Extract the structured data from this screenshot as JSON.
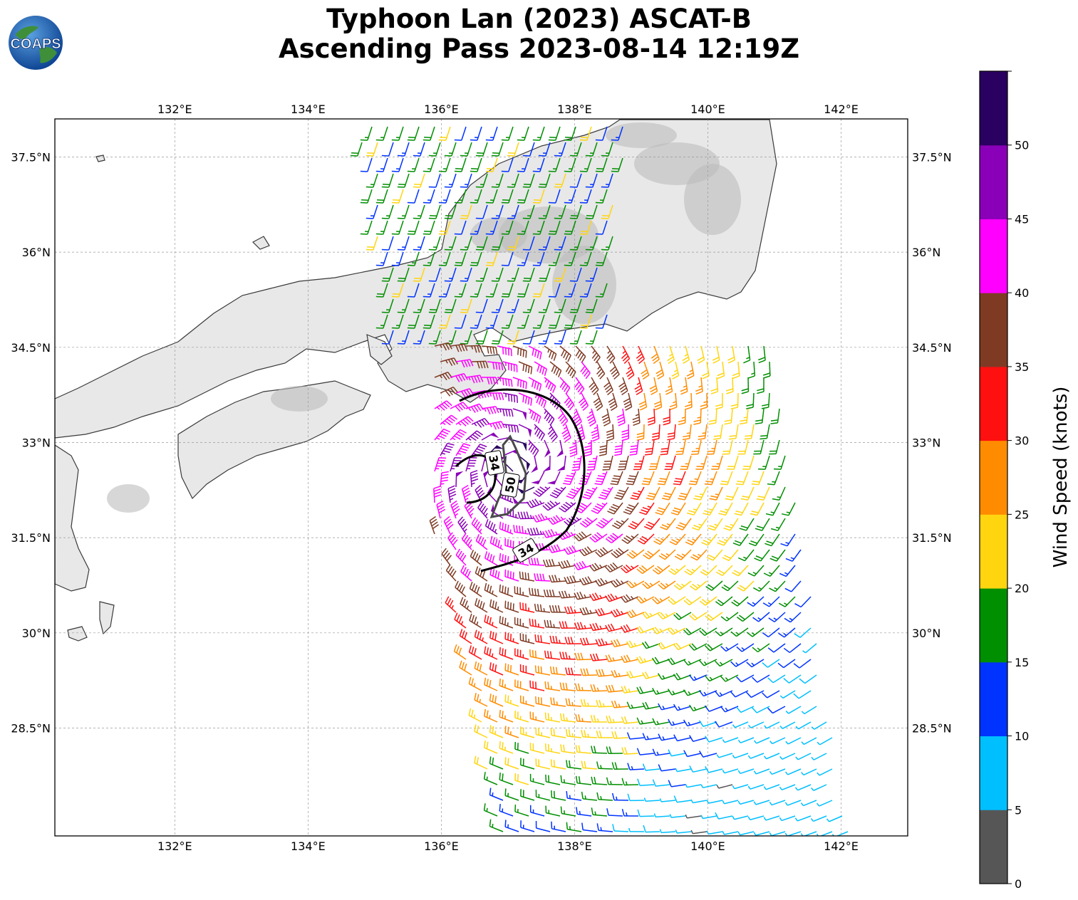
{
  "title": {
    "line1": "Typhoon Lan (2023) ASCAT-B",
    "line2": "Ascending Pass 2023-08-14 12:19Z"
  },
  "logo": {
    "text": "COAPS",
    "icon": "earth-globe-icon"
  },
  "map": {
    "lon_range": [
      130.2,
      143.0
    ],
    "lat_range": [
      26.8,
      38.1
    ],
    "lon_ticks": [
      "132°E",
      "134°E",
      "136°E",
      "138°E",
      "140°E",
      "142°E"
    ],
    "lat_ticks": [
      "37.5°N",
      "36°N",
      "34.5°N",
      "33°N",
      "31.5°N",
      "30°N",
      "28.5°N"
    ],
    "gridlines": true
  },
  "contours": [
    {
      "label": "34"
    },
    {
      "label": "50"
    },
    {
      "label": "34"
    }
  ],
  "colorbar": {
    "label": "Wind Speed (knots)",
    "ticks": [
      "0",
      "5",
      "10",
      "15",
      "20",
      "25",
      "30",
      "35",
      "40",
      "45",
      "50"
    ],
    "bins": [
      {
        "min": 0,
        "max": 5,
        "color": "#565656"
      },
      {
        "min": 5,
        "max": 10,
        "color": "#00bfff"
      },
      {
        "min": 10,
        "max": 15,
        "color": "#0033ff"
      },
      {
        "min": 15,
        "max": 20,
        "color": "#008f00"
      },
      {
        "min": 20,
        "max": 25,
        "color": "#ffd510"
      },
      {
        "min": 25,
        "max": 30,
        "color": "#ff8c00"
      },
      {
        "min": 30,
        "max": 35,
        "color": "#ff1010"
      },
      {
        "min": 35,
        "max": 40,
        "color": "#7f3a24"
      },
      {
        "min": 40,
        "max": 45,
        "color": "#ff00ff"
      },
      {
        "min": 45,
        "max": 50,
        "color": "#8a00b8"
      },
      {
        "min": 50,
        "max": 55,
        "color": "#2a0060"
      }
    ]
  },
  "storm_center": {
    "lon": 137.1,
    "lat": 32.6
  }
}
